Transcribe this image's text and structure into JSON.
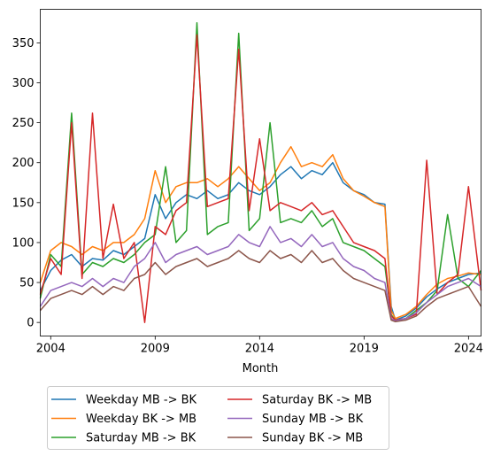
{
  "chart_data": {
    "type": "line",
    "title": "",
    "xlabel": "Month",
    "ylabel": "",
    "xlim": [
      2003.5,
      2024.6
    ],
    "ylim": [
      -17,
      392
    ],
    "grid": false,
    "legend_position": "below",
    "x_ticks": [
      {
        "value": 2004,
        "label": "2004"
      },
      {
        "value": 2009,
        "label": "2009"
      },
      {
        "value": 2014,
        "label": "2014"
      },
      {
        "value": 2019,
        "label": "2019"
      },
      {
        "value": 2024,
        "label": "2024"
      }
    ],
    "y_ticks": [
      0,
      50,
      100,
      150,
      200,
      250,
      300,
      350
    ],
    "series": [
      {
        "name": "Weekday MB -> BK",
        "color": "#1f77b4",
        "points": [
          [
            2003.5,
            40
          ],
          [
            2004,
            65
          ],
          [
            2004.5,
            78
          ],
          [
            2005,
            85
          ],
          [
            2005.5,
            70
          ],
          [
            2006,
            80
          ],
          [
            2006.5,
            78
          ],
          [
            2007,
            90
          ],
          [
            2007.5,
            85
          ],
          [
            2008,
            95
          ],
          [
            2008.5,
            105
          ],
          [
            2009,
            160
          ],
          [
            2009.5,
            130
          ],
          [
            2010,
            150
          ],
          [
            2010.5,
            160
          ],
          [
            2011,
            155
          ],
          [
            2011.5,
            165
          ],
          [
            2012,
            155
          ],
          [
            2012.5,
            160
          ],
          [
            2013,
            175
          ],
          [
            2013.5,
            165
          ],
          [
            2014,
            160
          ],
          [
            2014.5,
            170
          ],
          [
            2015,
            185
          ],
          [
            2015.5,
            195
          ],
          [
            2016,
            180
          ],
          [
            2016.5,
            190
          ],
          [
            2017,
            185
          ],
          [
            2017.5,
            200
          ],
          [
            2018,
            175
          ],
          [
            2018.5,
            165
          ],
          [
            2019,
            160
          ],
          [
            2019.5,
            150
          ],
          [
            2020,
            148
          ],
          [
            2020.3,
            20
          ],
          [
            2020.5,
            3
          ],
          [
            2021,
            8
          ],
          [
            2021.5,
            18
          ],
          [
            2022,
            32
          ],
          [
            2022.5,
            42
          ],
          [
            2023,
            50
          ],
          [
            2023.5,
            55
          ],
          [
            2024,
            60
          ],
          [
            2024.6,
            62
          ]
        ]
      },
      {
        "name": "Weekday BK -> MB",
        "color": "#ff7f0e",
        "points": [
          [
            2003.5,
            50
          ],
          [
            2004,
            90
          ],
          [
            2004.5,
            100
          ],
          [
            2005,
            95
          ],
          [
            2005.5,
            85
          ],
          [
            2006,
            95
          ],
          [
            2006.5,
            90
          ],
          [
            2007,
            100
          ],
          [
            2007.5,
            100
          ],
          [
            2008,
            110
          ],
          [
            2008.5,
            130
          ],
          [
            2009,
            190
          ],
          [
            2009.5,
            150
          ],
          [
            2010,
            170
          ],
          [
            2010.5,
            175
          ],
          [
            2011,
            175
          ],
          [
            2011.5,
            180
          ],
          [
            2012,
            170
          ],
          [
            2012.5,
            180
          ],
          [
            2013,
            195
          ],
          [
            2013.5,
            180
          ],
          [
            2014,
            165
          ],
          [
            2014.5,
            175
          ],
          [
            2015,
            200
          ],
          [
            2015.5,
            220
          ],
          [
            2016,
            195
          ],
          [
            2016.5,
            200
          ],
          [
            2017,
            195
          ],
          [
            2017.5,
            210
          ],
          [
            2018,
            180
          ],
          [
            2018.5,
            165
          ],
          [
            2019,
            158
          ],
          [
            2019.5,
            150
          ],
          [
            2020,
            145
          ],
          [
            2020.3,
            15
          ],
          [
            2020.5,
            5
          ],
          [
            2021,
            10
          ],
          [
            2021.5,
            20
          ],
          [
            2022,
            35
          ],
          [
            2022.5,
            48
          ],
          [
            2023,
            55
          ],
          [
            2023.5,
            58
          ],
          [
            2024,
            62
          ],
          [
            2024.6,
            60
          ]
        ]
      },
      {
        "name": "Saturday MB -> BK",
        "color": "#2ca02c",
        "points": [
          [
            2003.5,
            30
          ],
          [
            2004,
            85
          ],
          [
            2004.5,
            70
          ],
          [
            2005,
            262
          ],
          [
            2005.5,
            60
          ],
          [
            2006,
            75
          ],
          [
            2006.5,
            70
          ],
          [
            2007,
            80
          ],
          [
            2007.5,
            75
          ],
          [
            2008,
            85
          ],
          [
            2008.5,
            100
          ],
          [
            2009,
            110
          ],
          [
            2009.5,
            195
          ],
          [
            2010,
            100
          ],
          [
            2010.5,
            115
          ],
          [
            2011,
            375
          ],
          [
            2011.5,
            110
          ],
          [
            2012,
            120
          ],
          [
            2012.5,
            125
          ],
          [
            2013,
            362
          ],
          [
            2013.5,
            115
          ],
          [
            2014,
            130
          ],
          [
            2014.5,
            250
          ],
          [
            2015,
            125
          ],
          [
            2015.5,
            130
          ],
          [
            2016,
            125
          ],
          [
            2016.5,
            140
          ],
          [
            2017,
            120
          ],
          [
            2017.5,
            130
          ],
          [
            2018,
            100
          ],
          [
            2018.5,
            95
          ],
          [
            2019,
            90
          ],
          [
            2019.5,
            80
          ],
          [
            2020,
            70
          ],
          [
            2020.3,
            10
          ],
          [
            2020.5,
            2
          ],
          [
            2021,
            5
          ],
          [
            2021.5,
            15
          ],
          [
            2022,
            25
          ],
          [
            2022.5,
            40
          ],
          [
            2023,
            135
          ],
          [
            2023.5,
            55
          ],
          [
            2024,
            45
          ],
          [
            2024.6,
            65
          ]
        ]
      },
      {
        "name": "Saturday BK -> MB",
        "color": "#d62728",
        "points": [
          [
            2003.5,
            35
          ],
          [
            2004,
            80
          ],
          [
            2004.5,
            60
          ],
          [
            2005,
            250
          ],
          [
            2005.5,
            55
          ],
          [
            2006,
            262
          ],
          [
            2006.5,
            80
          ],
          [
            2007,
            148
          ],
          [
            2007.5,
            80
          ],
          [
            2008,
            100
          ],
          [
            2008.5,
            0
          ],
          [
            2009,
            120
          ],
          [
            2009.5,
            110
          ],
          [
            2010,
            140
          ],
          [
            2010.5,
            150
          ],
          [
            2011,
            360
          ],
          [
            2011.5,
            145
          ],
          [
            2012,
            150
          ],
          [
            2012.5,
            155
          ],
          [
            2013,
            342
          ],
          [
            2013.5,
            140
          ],
          [
            2014,
            230
          ],
          [
            2014.5,
            140
          ],
          [
            2015,
            150
          ],
          [
            2015.5,
            145
          ],
          [
            2016,
            140
          ],
          [
            2016.5,
            150
          ],
          [
            2017,
            135
          ],
          [
            2017.5,
            140
          ],
          [
            2018,
            120
          ],
          [
            2018.5,
            100
          ],
          [
            2019,
            95
          ],
          [
            2019.5,
            90
          ],
          [
            2020,
            80
          ],
          [
            2020.3,
            8
          ],
          [
            2020.5,
            3
          ],
          [
            2021,
            5
          ],
          [
            2021.5,
            10
          ],
          [
            2022,
            203
          ],
          [
            2022.5,
            35
          ],
          [
            2023,
            50
          ],
          [
            2023.5,
            60
          ],
          [
            2024,
            170
          ],
          [
            2024.6,
            40
          ]
        ]
      },
      {
        "name": "Sunday MB -> BK",
        "color": "#9467bd",
        "points": [
          [
            2003.5,
            20
          ],
          [
            2004,
            40
          ],
          [
            2004.5,
            45
          ],
          [
            2005,
            50
          ],
          [
            2005.5,
            45
          ],
          [
            2006,
            55
          ],
          [
            2006.5,
            45
          ],
          [
            2007,
            55
          ],
          [
            2007.5,
            50
          ],
          [
            2008,
            70
          ],
          [
            2008.5,
            80
          ],
          [
            2009,
            100
          ],
          [
            2009.5,
            75
          ],
          [
            2010,
            85
          ],
          [
            2010.5,
            90
          ],
          [
            2011,
            95
          ],
          [
            2011.5,
            85
          ],
          [
            2012,
            90
          ],
          [
            2012.5,
            95
          ],
          [
            2013,
            110
          ],
          [
            2013.5,
            100
          ],
          [
            2014,
            95
          ],
          [
            2014.5,
            120
          ],
          [
            2015,
            100
          ],
          [
            2015.5,
            105
          ],
          [
            2016,
            95
          ],
          [
            2016.5,
            110
          ],
          [
            2017,
            95
          ],
          [
            2017.5,
            100
          ],
          [
            2018,
            80
          ],
          [
            2018.5,
            70
          ],
          [
            2019,
            65
          ],
          [
            2019.5,
            55
          ],
          [
            2020,
            50
          ],
          [
            2020.3,
            5
          ],
          [
            2020.5,
            2
          ],
          [
            2021,
            5
          ],
          [
            2021.5,
            12
          ],
          [
            2022,
            25
          ],
          [
            2022.5,
            35
          ],
          [
            2023,
            45
          ],
          [
            2023.5,
            50
          ],
          [
            2024,
            55
          ],
          [
            2024.6,
            45
          ]
        ]
      },
      {
        "name": "Sunday BK -> MB",
        "color": "#8c564b",
        "points": [
          [
            2003.5,
            15
          ],
          [
            2004,
            30
          ],
          [
            2004.5,
            35
          ],
          [
            2005,
            40
          ],
          [
            2005.5,
            35
          ],
          [
            2006,
            45
          ],
          [
            2006.5,
            35
          ],
          [
            2007,
            45
          ],
          [
            2007.5,
            40
          ],
          [
            2008,
            55
          ],
          [
            2008.5,
            60
          ],
          [
            2009,
            75
          ],
          [
            2009.5,
            60
          ],
          [
            2010,
            70
          ],
          [
            2010.5,
            75
          ],
          [
            2011,
            80
          ],
          [
            2011.5,
            70
          ],
          [
            2012,
            75
          ],
          [
            2012.5,
            80
          ],
          [
            2013,
            90
          ],
          [
            2013.5,
            80
          ],
          [
            2014,
            75
          ],
          [
            2014.5,
            90
          ],
          [
            2015,
            80
          ],
          [
            2015.5,
            85
          ],
          [
            2016,
            75
          ],
          [
            2016.5,
            90
          ],
          [
            2017,
            75
          ],
          [
            2017.5,
            80
          ],
          [
            2018,
            65
          ],
          [
            2018.5,
            55
          ],
          [
            2019,
            50
          ],
          [
            2019.5,
            45
          ],
          [
            2020,
            40
          ],
          [
            2020.3,
            3
          ],
          [
            2020.5,
            1
          ],
          [
            2021,
            3
          ],
          [
            2021.5,
            8
          ],
          [
            2022,
            20
          ],
          [
            2022.5,
            30
          ],
          [
            2023,
            35
          ],
          [
            2023.5,
            40
          ],
          [
            2024,
            45
          ],
          [
            2024.6,
            20
          ]
        ]
      }
    ]
  }
}
